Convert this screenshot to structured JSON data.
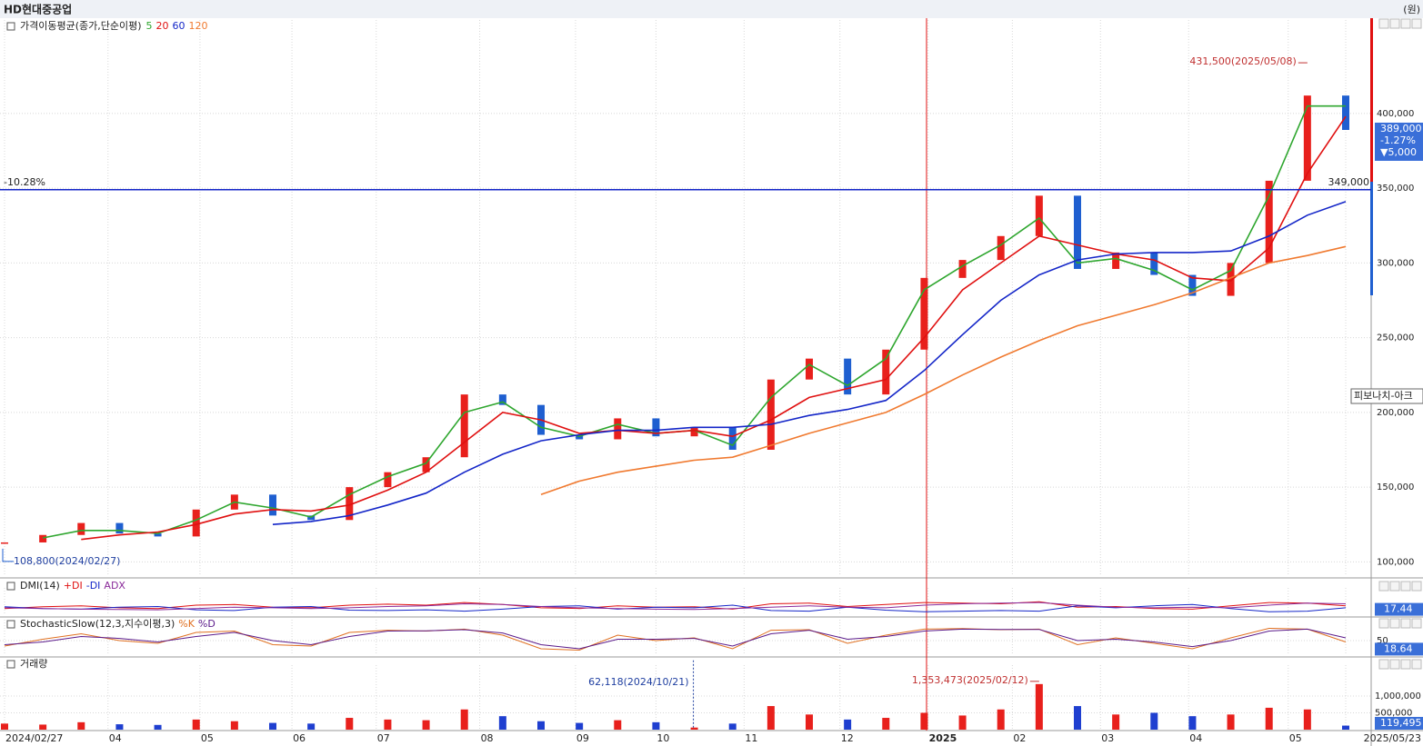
{
  "chart_data": [
    {
      "type": "candlestick",
      "title": "HD현대중공업",
      "unit_label": "(원)",
      "legend_label": "가격이동평균(종가,단순이평)",
      "up_color": "#e8201c",
      "down_color": "#1f5fd0",
      "values": [
        113000,
        118000,
        126000,
        119000,
        117000,
        135000,
        145000,
        131000,
        128000,
        150000,
        160000,
        170000,
        212000,
        205000,
        185000,
        182000,
        196000,
        184000,
        190000,
        175000,
        222000,
        236000,
        212000,
        242000,
        290000,
        302000,
        318000,
        345000,
        296000,
        307000,
        292000,
        278000,
        300000,
        355000,
        412000,
        389000
      ],
      "series": [
        {
          "name": "5",
          "color": "#2ea62e",
          "values": [
            null,
            116000,
            121000,
            121000,
            119000,
            128000,
            140000,
            136000,
            130000,
            145000,
            157000,
            166000,
            200000,
            207000,
            190000,
            184000,
            192000,
            186000,
            188000,
            178000,
            210000,
            232000,
            218000,
            236000,
            282000,
            298000,
            312000,
            330000,
            300000,
            303000,
            295000,
            282000,
            295000,
            345000,
            405000,
            405000
          ]
        },
        {
          "name": "20",
          "color": "#e01010",
          "values": [
            null,
            null,
            115000,
            118000,
            120000,
            125000,
            132000,
            135000,
            134000,
            138000,
            148000,
            160000,
            180000,
            200000,
            195000,
            186000,
            188000,
            186000,
            188000,
            184000,
            195000,
            210000,
            216000,
            222000,
            250000,
            282000,
            300000,
            318000,
            312000,
            306000,
            302000,
            290000,
            288000,
            310000,
            360000,
            398000
          ]
        },
        {
          "name": "60",
          "color": "#1426c8",
          "values": [
            null,
            null,
            null,
            null,
            null,
            null,
            null,
            125000,
            127000,
            131000,
            138000,
            146000,
            160000,
            172000,
            181000,
            185000,
            188000,
            188000,
            190000,
            190000,
            192000,
            198000,
            202000,
            208000,
            228000,
            252000,
            275000,
            292000,
            302000,
            306000,
            307000,
            307000,
            308000,
            318000,
            332000,
            341000
          ]
        },
        {
          "name": "120",
          "color": "#f07a30",
          "values": [
            null,
            null,
            null,
            null,
            null,
            null,
            null,
            null,
            null,
            null,
            null,
            null,
            null,
            null,
            145000,
            154000,
            160000,
            164000,
            168000,
            170000,
            178000,
            186000,
            193000,
            200000,
            212000,
            225000,
            237000,
            248000,
            258000,
            265000,
            272000,
            280000,
            290000,
            300000,
            305000,
            311000
          ]
        }
      ],
      "ylim": [
        91700,
        457700
      ],
      "yticks": [
        {
          "value": 100000,
          "label": "100,000"
        },
        {
          "value": 150000,
          "label": "150,000"
        },
        {
          "value": 200000,
          "label": "200,000"
        },
        {
          "value": 250000,
          "label": "250,000"
        },
        {
          "value": 300000,
          "label": "300,000"
        },
        {
          "value": 350000,
          "label": "350,000"
        },
        {
          "value": 400000,
          "label": "400,000"
        }
      ],
      "high_annotation": {
        "index": 34,
        "value": 431500,
        "label": "431,500(2025/05/08)"
      },
      "low_annotation": {
        "index": 0,
        "value": 108800,
        "label": "108,800(2024/02/27)"
      },
      "hline": {
        "value": 349000,
        "label": "349,000",
        "pct_label": "-10.28%",
        "color": "#1426c8"
      },
      "fib_label": "피보나치-아크",
      "current": {
        "value": 389000,
        "label": "389,000"
      },
      "change": "-1.27%",
      "change_amount": "▼5,000"
    },
    {
      "type": "line",
      "title": "DMI(14)",
      "ylim": [
        0,
        60
      ],
      "series": [
        {
          "name": "+DI",
          "color": "#e01010",
          "values": [
            20,
            25,
            28,
            22,
            20,
            30,
            32,
            24,
            22,
            30,
            33,
            30,
            38,
            32,
            22,
            20,
            28,
            24,
            25,
            18,
            34,
            36,
            26,
            32,
            38,
            36,
            34,
            40,
            24,
            26,
            20,
            18,
            28,
            38,
            36,
            28
          ]
        },
        {
          "name": "-DI",
          "color": "#1426c8",
          "values": [
            25,
            20,
            18,
            24,
            26,
            16,
            14,
            24,
            26,
            15,
            14,
            16,
            12,
            18,
            26,
            28,
            18,
            24,
            22,
            30,
            14,
            12,
            24,
            15,
            10,
            12,
            14,
            12,
            28,
            22,
            28,
            32,
            20,
            10,
            12,
            22
          ]
        },
        {
          "name": "ADX",
          "color": "#8a2a9a",
          "values": [
            22,
            20,
            18,
            17,
            16,
            20,
            24,
            22,
            20,
            22,
            26,
            28,
            34,
            32,
            26,
            22,
            20,
            18,
            17,
            20,
            24,
            28,
            24,
            22,
            30,
            34,
            36,
            38,
            30,
            24,
            22,
            24,
            22,
            30,
            36,
            34
          ]
        }
      ],
      "current": 17.44
    },
    {
      "type": "line",
      "title": "StochasticSlow(12,3,지수이평,3)",
      "ylim": [
        0,
        100
      ],
      "yticks": [
        50
      ],
      "series": [
        {
          "name": "%K",
          "color": "#e07020",
          "values": [
            30,
            55,
            75,
            50,
            40,
            80,
            85,
            35,
            30,
            80,
            88,
            85,
            92,
            70,
            20,
            15,
            70,
            50,
            60,
            20,
            88,
            90,
            40,
            70,
            92,
            94,
            90,
            92,
            35,
            60,
            40,
            20,
            60,
            95,
            92,
            45
          ]
        },
        {
          "name": "%D",
          "color": "#5a1a8a",
          "values": [
            35,
            45,
            65,
            58,
            45,
            65,
            80,
            50,
            35,
            65,
            85,
            86,
            90,
            78,
            35,
            20,
            55,
            55,
            58,
            30,
            75,
            88,
            55,
            65,
            85,
            92,
            91,
            91,
            50,
            55,
            45,
            28,
            50,
            85,
            92,
            60
          ]
        }
      ],
      "current": 18.64
    },
    {
      "type": "volume",
      "title": "거래량",
      "ylim": [
        0,
        1700000
      ],
      "yticks": [
        {
          "value": 500000,
          "label": "500,000"
        },
        {
          "value": 1000000,
          "label": "1,000,000"
        }
      ],
      "values": [
        180000,
        150000,
        220000,
        160000,
        140000,
        300000,
        250000,
        200000,
        180000,
        350000,
        300000,
        280000,
        600000,
        400000,
        250000,
        200000,
        280000,
        220000,
        62118,
        180000,
        700000,
        450000,
        300000,
        350000,
        500000,
        420000,
        600000,
        1353473,
        700000,
        450000,
        500000,
        400000,
        450000,
        650000,
        600000,
        119495
      ],
      "value_labels": {
        "35": "119,495"
      },
      "max_annotation": {
        "index": 27,
        "value": 1353473,
        "label": "1,353,473(2025/02/12)"
      },
      "mark_annotation": {
        "index": 18,
        "value": 62118,
        "label": "62,118(2024/10/21)"
      },
      "xticks": [
        {
          "value": 0,
          "label": "2024/02/27"
        },
        {
          "value": 2.7,
          "label": "04"
        },
        {
          "value": 5.1,
          "label": "05"
        },
        {
          "value": 7.5,
          "label": "06"
        },
        {
          "value": 9.7,
          "label": "07"
        },
        {
          "value": 12.4,
          "label": "08"
        },
        {
          "value": 14.9,
          "label": "09"
        },
        {
          "value": 17,
          "label": "10"
        },
        {
          "value": 19.3,
          "label": "11"
        },
        {
          "value": 21.8,
          "label": "12"
        },
        {
          "value": 24.1,
          "label": "2025"
        },
        {
          "value": 26.3,
          "label": "02"
        },
        {
          "value": 28.6,
          "label": "03"
        },
        {
          "value": 30.9,
          "label": "04"
        },
        {
          "value": 33.5,
          "label": "05"
        },
        {
          "value": 35,
          "label": "2025/05/23"
        }
      ]
    }
  ]
}
